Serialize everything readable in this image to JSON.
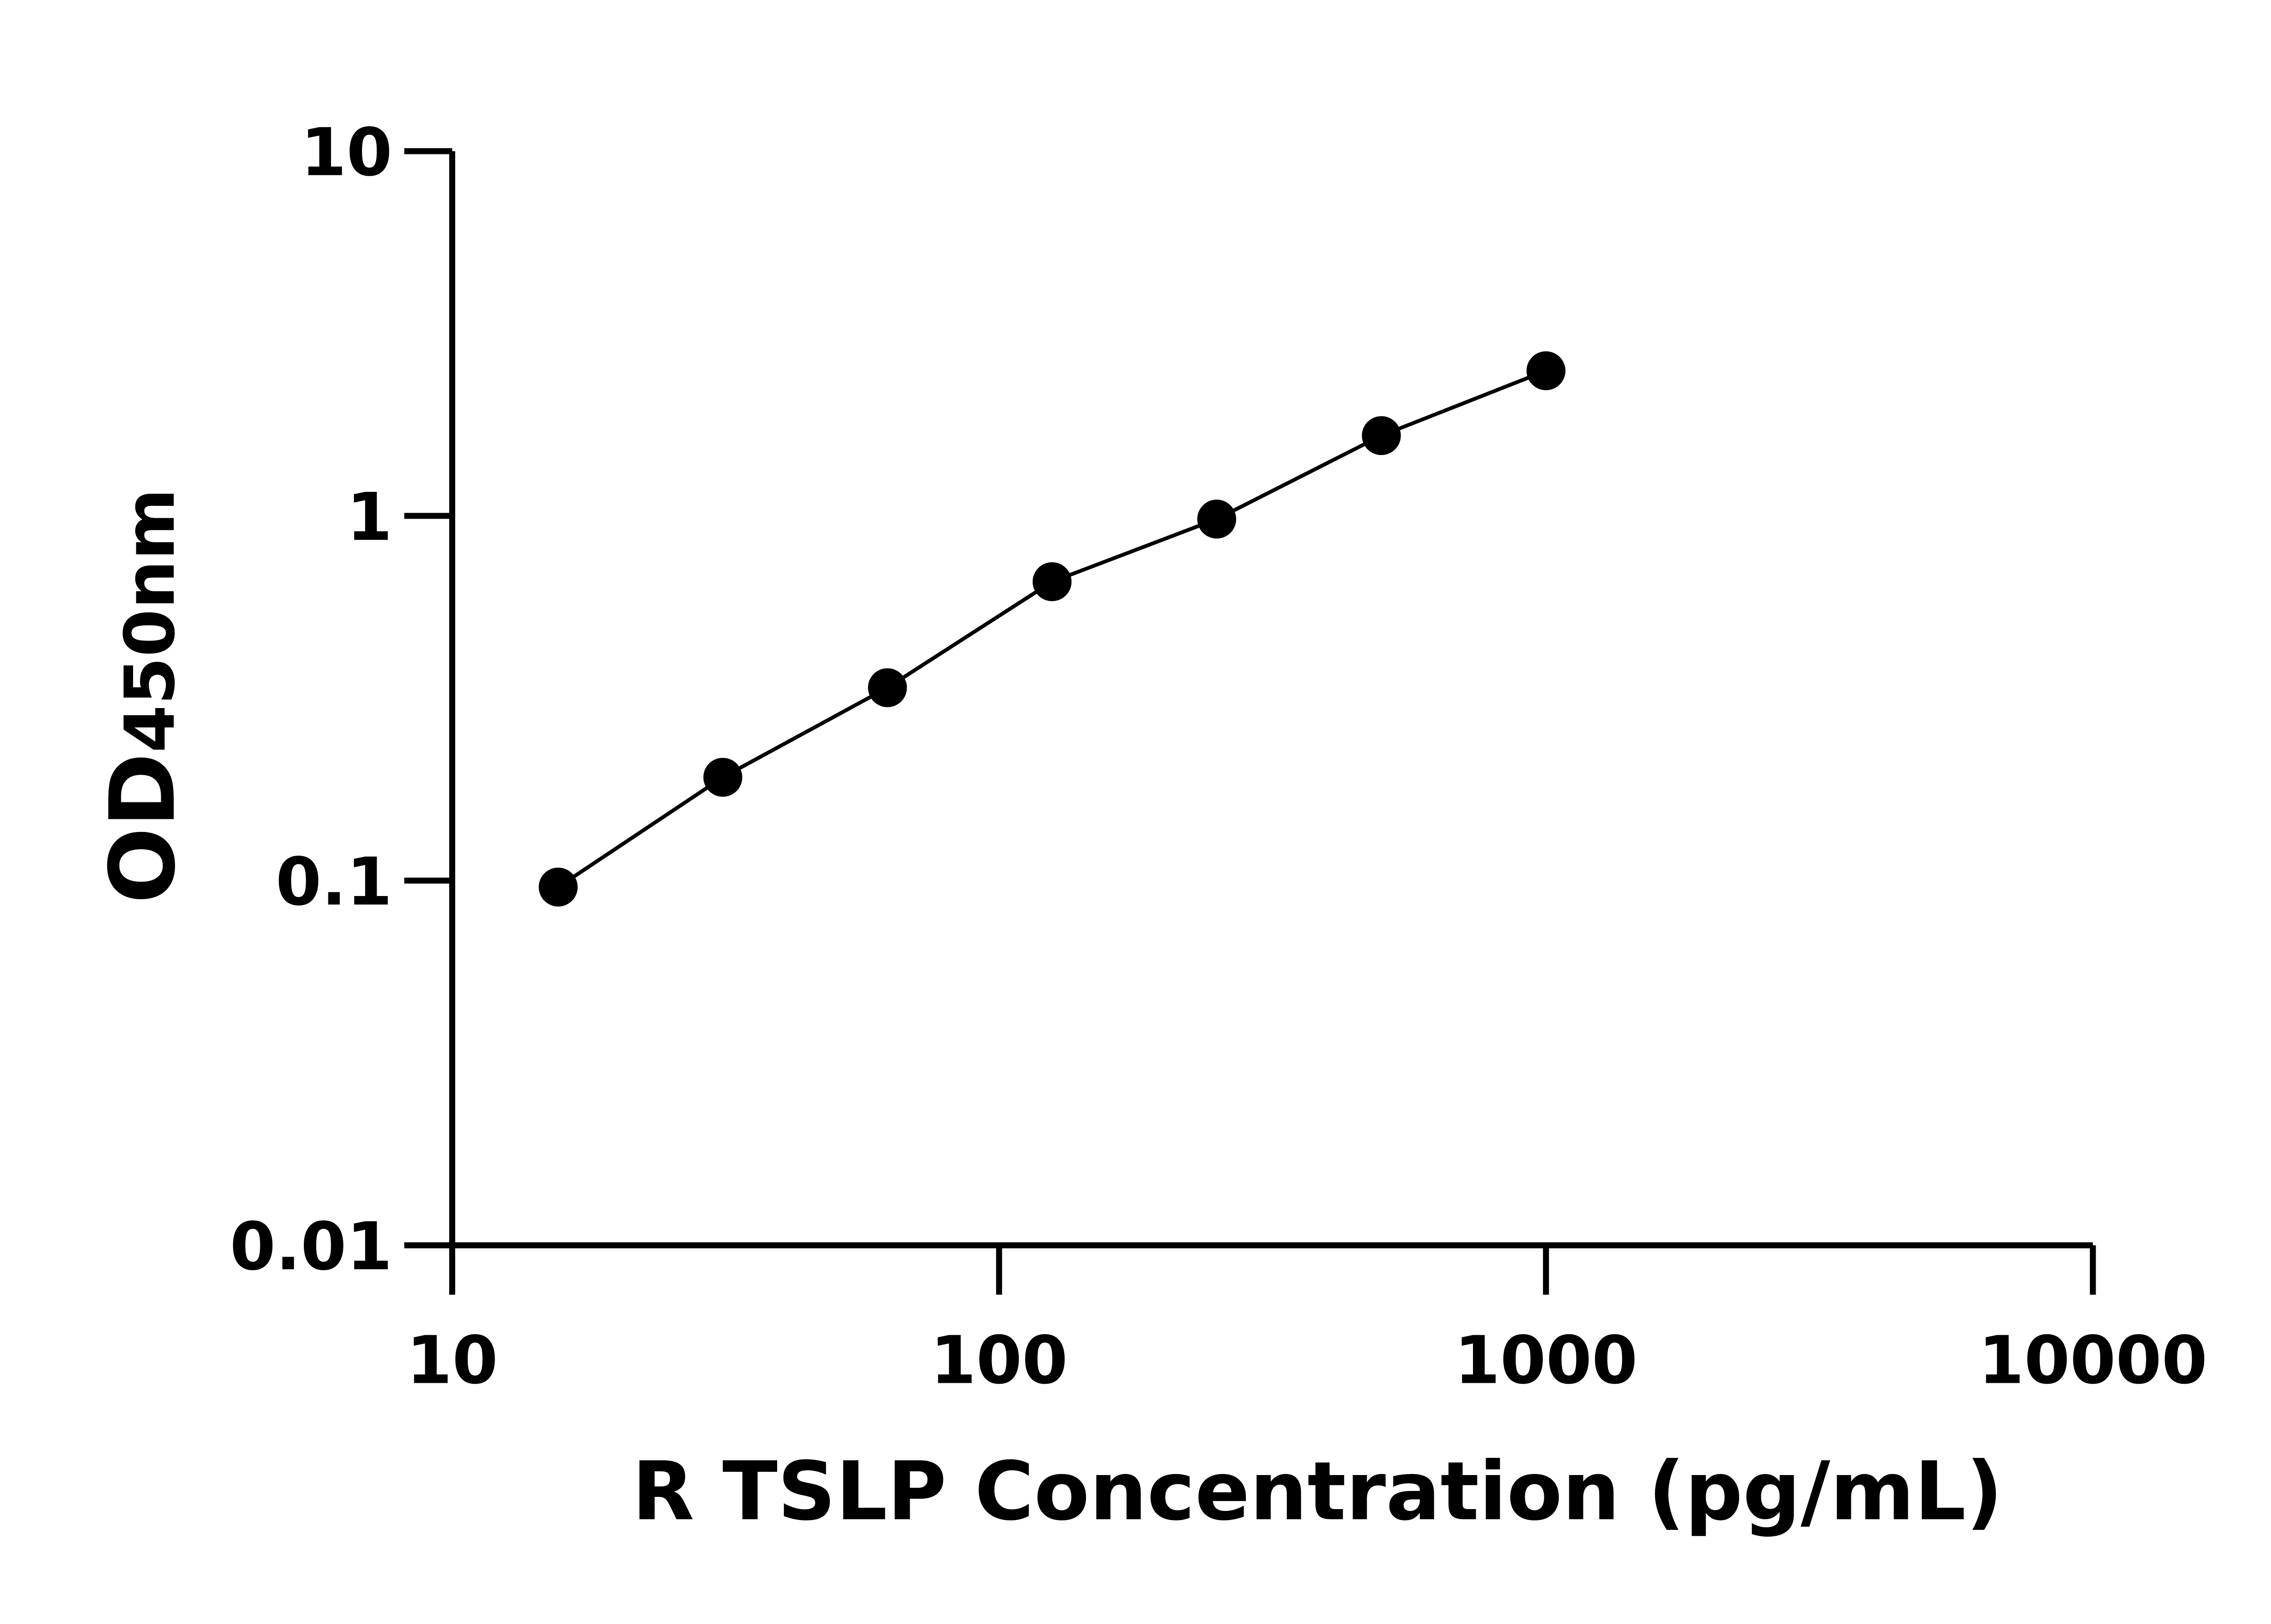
{
  "chart_data": {
    "type": "scatter",
    "title": "",
    "xlabel": "R TSLP Concentration (pg/mL)",
    "ylabel_main": "OD",
    "ylabel_sub": "450nm",
    "x_scale": "log",
    "y_scale": "log",
    "xlim": [
      10,
      10000
    ],
    "ylim": [
      0.01,
      10
    ],
    "x_ticks": [
      10,
      100,
      1000,
      10000
    ],
    "x_tick_labels": [
      "10",
      "100",
      "1000",
      "10000"
    ],
    "y_ticks": [
      0.01,
      0.1,
      1,
      10
    ],
    "y_tick_labels": [
      "0.01",
      "0.1",
      "1",
      "10"
    ],
    "grid": false,
    "legend": "none",
    "series": [
      {
        "x": [
          15.625,
          31.25,
          62.5,
          125,
          250,
          500,
          1000
        ],
        "y": [
          0.096,
          0.192,
          0.338,
          0.66,
          0.98,
          1.66,
          2.5
        ],
        "marker": "filled-circle",
        "fit_line": true,
        "color": "#000000"
      }
    ]
  }
}
